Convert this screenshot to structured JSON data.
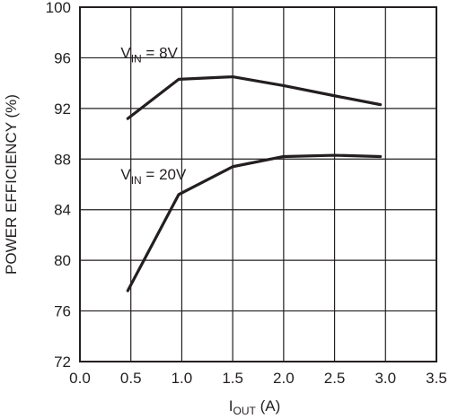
{
  "chart_data": {
    "type": "line",
    "title": "",
    "xlabel": {
      "main": "I",
      "sub": "OUT",
      "rest": " (A)"
    },
    "ylabel": "POWER EFFICIENCY (%)",
    "xlim": [
      0,
      3.5
    ],
    "ylim": [
      72,
      100
    ],
    "xticks": [
      0,
      0.5,
      1.0,
      1.5,
      2.0,
      2.5,
      3.0,
      3.5
    ],
    "xtick_labels": [
      "0.0",
      "0.5",
      "1.0",
      "1.5",
      "2.0",
      "2.5",
      "3.0",
      "3.5"
    ],
    "yticks": [
      72,
      76,
      80,
      84,
      88,
      92,
      96,
      100
    ],
    "ytick_labels": [
      "72",
      "76",
      "80",
      "84",
      "88",
      "92",
      "96",
      "100"
    ],
    "grid": true,
    "line_color": "#231f20",
    "series": [
      {
        "name": "V_IN = 8V",
        "label": {
          "main": "V",
          "sub": "IN",
          "rest": " = 8V"
        },
        "x": [
          0.47,
          0.97,
          1.5,
          2.0,
          2.5,
          2.95
        ],
        "y": [
          91.2,
          94.3,
          94.5,
          93.8,
          93.0,
          92.3
        ]
      },
      {
        "name": "V_IN = 20V",
        "label": {
          "main": "V",
          "sub": "IN",
          "rest": " = 20V"
        },
        "x": [
          0.47,
          0.97,
          1.5,
          2.0,
          2.5,
          2.95
        ],
        "y": [
          77.6,
          85.2,
          87.4,
          88.2,
          88.3,
          88.2
        ]
      }
    ]
  }
}
